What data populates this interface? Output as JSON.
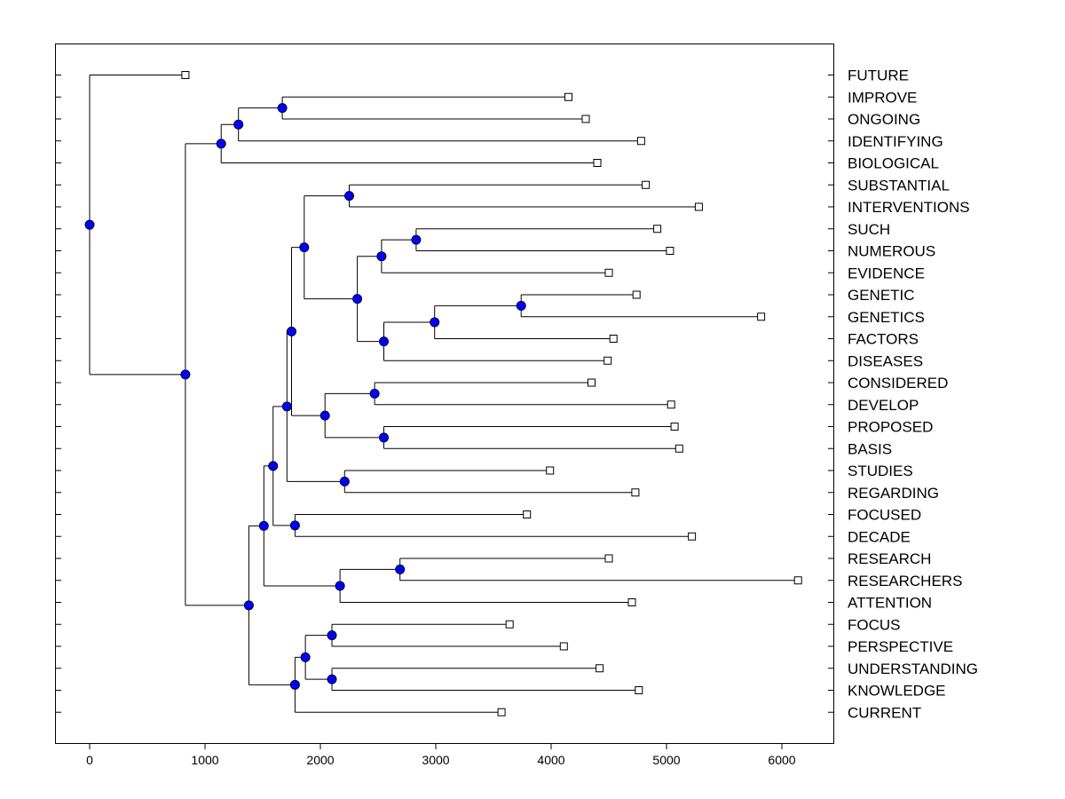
{
  "chart_data": {
    "type": "dendrogram",
    "title": "",
    "xlabel": "",
    "ylabel": "",
    "xlim": [
      -300,
      6450
    ],
    "x_ticks": [
      0,
      1000,
      2000,
      3000,
      4000,
      5000,
      6000
    ],
    "x_tick_labels": [
      "0",
      "1000",
      "2000",
      "3000",
      "4000",
      "5000",
      "6000"
    ],
    "colors": {
      "node_fill": "#0000ff",
      "node_stroke": "#000033",
      "line": "#000000",
      "leaf_fill": "#ffffff"
    },
    "leaves": [
      {
        "label": "FUTURE",
        "value": 830
      },
      {
        "label": "IMPROVE",
        "value": 4150
      },
      {
        "label": "ONGOING",
        "value": 4300
      },
      {
        "label": "IDENTIFYING",
        "value": 4780
      },
      {
        "label": "BIOLOGICAL",
        "value": 4400
      },
      {
        "label": "SUBSTANTIAL",
        "value": 4820
      },
      {
        "label": "INTERVENTIONS",
        "value": 5280
      },
      {
        "label": "SUCH",
        "value": 4920
      },
      {
        "label": "NUMEROUS",
        "value": 5030
      },
      {
        "label": "EVIDENCE",
        "value": 4500
      },
      {
        "label": "GENETIC",
        "value": 4740
      },
      {
        "label": "GENETICS",
        "value": 5820
      },
      {
        "label": "FACTORS",
        "value": 4540
      },
      {
        "label": "DISEASES",
        "value": 4490
      },
      {
        "label": "CONSIDERED",
        "value": 4350
      },
      {
        "label": "DEVELOP",
        "value": 5040
      },
      {
        "label": "PROPOSED",
        "value": 5070
      },
      {
        "label": "BASIS",
        "value": 5110
      },
      {
        "label": "STUDIES",
        "value": 3990
      },
      {
        "label": "REGARDING",
        "value": 4730
      },
      {
        "label": "FOCUSED",
        "value": 3790
      },
      {
        "label": "DECADE",
        "value": 5220
      },
      {
        "label": "RESEARCH",
        "value": 4500
      },
      {
        "label": "RESEARCHERS",
        "value": 6140
      },
      {
        "label": "ATTENTION",
        "value": 4700
      },
      {
        "label": "FOCUS",
        "value": 3640
      },
      {
        "label": "PERSPECTIVE",
        "value": 4110
      },
      {
        "label": "UNDERSTANDING",
        "value": 4420
      },
      {
        "label": "KNOWLEDGE",
        "value": 4760
      },
      {
        "label": "CURRENT",
        "value": 3570
      }
    ],
    "merges": [
      {
        "id": "n1",
        "value": 1670,
        "children": [
          "IMPROVE",
          "ONGOING"
        ]
      },
      {
        "id": "n2",
        "value": 1290,
        "children": [
          "n1",
          "IDENTIFYING"
        ]
      },
      {
        "id": "n3",
        "value": 1140,
        "children": [
          "n2",
          "BIOLOGICAL"
        ]
      },
      {
        "id": "n4",
        "value": 2250,
        "children": [
          "SUBSTANTIAL",
          "INTERVENTIONS"
        ]
      },
      {
        "id": "n5",
        "value": 2830,
        "children": [
          "SUCH",
          "NUMEROUS"
        ]
      },
      {
        "id": "n6",
        "value": 2530,
        "children": [
          "n5",
          "EVIDENCE"
        ]
      },
      {
        "id": "n7",
        "value": 3740,
        "children": [
          "GENETIC",
          "GENETICS"
        ]
      },
      {
        "id": "n8",
        "value": 2990,
        "children": [
          "n7",
          "FACTORS"
        ]
      },
      {
        "id": "n9",
        "value": 2550,
        "children": [
          "n8",
          "DISEASES"
        ]
      },
      {
        "id": "n10",
        "value": 2320,
        "children": [
          "n6",
          "n9"
        ]
      },
      {
        "id": "n11",
        "value": 1860,
        "children": [
          "n4",
          "n10"
        ]
      },
      {
        "id": "n12",
        "value": 2470,
        "children": [
          "CONSIDERED",
          "DEVELOP"
        ]
      },
      {
        "id": "n13",
        "value": 2550,
        "children": [
          "PROPOSED",
          "BASIS"
        ]
      },
      {
        "id": "n14",
        "value": 2040,
        "children": [
          "n12",
          "n13"
        ]
      },
      {
        "id": "n15",
        "value": 1750,
        "children": [
          "n11",
          "n14"
        ]
      },
      {
        "id": "n16",
        "value": 2210,
        "children": [
          "STUDIES",
          "REGARDING"
        ]
      },
      {
        "id": "n17",
        "value": 1710,
        "children": [
          "n15",
          "n16"
        ]
      },
      {
        "id": "n18",
        "value": 1780,
        "children": [
          "FOCUSED",
          "DECADE"
        ]
      },
      {
        "id": "n19",
        "value": 1590,
        "children": [
          "n17",
          "n18"
        ]
      },
      {
        "id": "n20",
        "value": 2690,
        "children": [
          "RESEARCH",
          "RESEARCHERS"
        ]
      },
      {
        "id": "n21",
        "value": 2170,
        "children": [
          "n20",
          "ATTENTION"
        ]
      },
      {
        "id": "n22",
        "value": 1510,
        "children": [
          "n19",
          "n21"
        ]
      },
      {
        "id": "n23",
        "value": 2100,
        "children": [
          "FOCUS",
          "PERSPECTIVE"
        ]
      },
      {
        "id": "n24",
        "value": 2100,
        "children": [
          "UNDERSTANDING",
          "KNOWLEDGE"
        ]
      },
      {
        "id": "n25",
        "value": 1870,
        "children": [
          "n23",
          "n24"
        ]
      },
      {
        "id": "n26",
        "value": 1780,
        "children": [
          "n25",
          "CURRENT"
        ]
      },
      {
        "id": "n27",
        "value": 1380,
        "children": [
          "n22",
          "n26"
        ]
      },
      {
        "id": "n28",
        "value": 830,
        "children": [
          "n3",
          "n27"
        ]
      },
      {
        "id": "root",
        "value": 0,
        "children": [
          "FUTURE",
          "n28"
        ]
      }
    ]
  }
}
